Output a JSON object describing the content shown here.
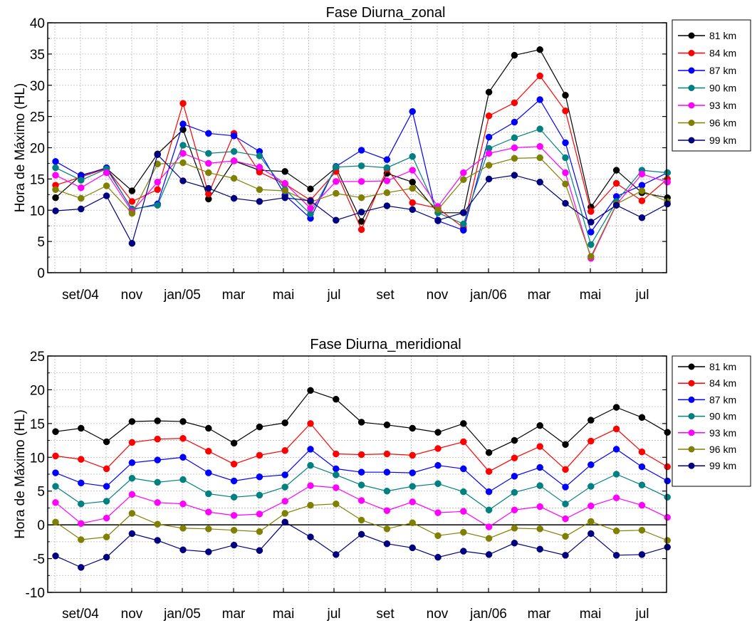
{
  "chart_data": [
    {
      "type": "line",
      "title": "Fase Diurna_zonal",
      "xlabel": "",
      "ylabel": "Hora de Máximo (HL)",
      "ylim": [
        0,
        40
      ],
      "yticks": [
        0,
        5,
        10,
        15,
        20,
        25,
        30,
        35,
        40
      ],
      "x_tick_labels": [
        "set/04",
        "nov",
        "jan/05",
        "mar",
        "mai",
        "jul",
        "set",
        "nov",
        "jan/06",
        "mar",
        "mai",
        "jul"
      ],
      "grid": true,
      "zero_line": false,
      "legend_position": "right",
      "series": [
        {
          "name": "81 km",
          "color": "#000000",
          "values": [
            12,
            15.6,
            16.7,
            13.1,
            19,
            22.9,
            11.8,
            17.9,
            16.4,
            16.2,
            13.4,
            16.8,
            8.2,
            15.9,
            14.5,
            9.6,
            9.6,
            28.9,
            34.8,
            35.7,
            28.4,
            10.5,
            16.4,
            12.8,
            12
          ]
        },
        {
          "name": "84 km",
          "color": "#ff0000",
          "values": [
            14,
            15.3,
            16.7,
            11.4,
            13.3,
            27.1,
            12.6,
            22.3,
            16.1,
            14.2,
            11.6,
            16.2,
            6.9,
            16.6,
            11.2,
            10.3,
            7.2,
            25.1,
            27.2,
            31.5,
            25.9,
            9.8,
            14.3,
            11.5,
            15
          ]
        },
        {
          "name": "87 km",
          "color": "#0000ff",
          "values": [
            17.8,
            15.5,
            16.8,
            10.1,
            11,
            23.8,
            22.3,
            21.9,
            19.4,
            12.4,
            8.7,
            17,
            19.6,
            18.1,
            25.8,
            8.3,
            6.8,
            21.7,
            24.1,
            27.7,
            20.8,
            6.5,
            12.2,
            14,
            16
          ]
        },
        {
          "name": "90 km",
          "color": "#008080",
          "values": [
            16.8,
            14.8,
            16.6,
            10.2,
            10.8,
            20.4,
            19.1,
            19.4,
            18.7,
            13.3,
            9.4,
            16.9,
            17.1,
            16.8,
            18.6,
            9.6,
            7.8,
            19.9,
            21.6,
            23,
            18.4,
            4.5,
            11.4,
            16.4,
            16
          ]
        },
        {
          "name": "93 km",
          "color": "#ff00ff",
          "values": [
            15.6,
            13.6,
            16,
            9.8,
            14.5,
            19.1,
            17.5,
            17.9,
            16.9,
            14.3,
            10.3,
            14.6,
            14.6,
            14.7,
            16.4,
            10.6,
            16,
            19.1,
            20,
            20.2,
            16,
            2.3,
            10.9,
            15.8,
            14.5
          ]
        },
        {
          "name": "96 km",
          "color": "#808000",
          "values": [
            13.3,
            11.9,
            13.9,
            9.5,
            17.4,
            17.6,
            16,
            15.1,
            13.3,
            13.1,
            11.3,
            12.7,
            12,
            12.8,
            13.5,
            10.1,
            14.9,
            17.2,
            18.3,
            18.4,
            14.2,
            2.6,
            11,
            13.1,
            11.4
          ]
        },
        {
          "name": "99 km",
          "color": "#000080",
          "values": [
            9.9,
            10.2,
            12.3,
            4.7,
            18.9,
            14.7,
            13.5,
            11.9,
            11.4,
            12,
            11.5,
            8.4,
            9.7,
            10.7,
            10.1,
            8.4,
            9.6,
            15,
            15.6,
            14.5,
            11.1,
            8.1,
            10.8,
            8.8,
            11
          ]
        }
      ]
    },
    {
      "type": "line",
      "title": "Fase Diurna_meridional",
      "xlabel": "",
      "ylabel": "Hora de Máximo (HL)",
      "ylim": [
        -10,
        25
      ],
      "yticks": [
        -10,
        -5,
        0,
        5,
        10,
        15,
        20,
        25
      ],
      "x_tick_labels": [
        "set/04",
        "nov",
        "jan/05",
        "mar",
        "mai",
        "jul",
        "set",
        "nov",
        "jan/06",
        "mar",
        "mai",
        "jul"
      ],
      "grid": true,
      "zero_line": true,
      "legend_position": "right",
      "series": [
        {
          "name": "81 km",
          "color": "#000000",
          "values": [
            13.8,
            14.3,
            12.3,
            15.3,
            15.4,
            15.3,
            14.3,
            12.1,
            14.5,
            15.1,
            19.9,
            18.6,
            15.2,
            14.8,
            14.3,
            13.7,
            15,
            10.7,
            12.5,
            14.7,
            11.9,
            15.5,
            17.4,
            15.9,
            13.7
          ]
        },
        {
          "name": "84 km",
          "color": "#ff0000",
          "values": [
            10.2,
            9.7,
            8.3,
            12.2,
            12.7,
            12.8,
            10.9,
            9,
            10.3,
            11,
            15,
            10.5,
            10.4,
            10.5,
            10.3,
            11.3,
            12.3,
            7.9,
            9.9,
            11.6,
            8.2,
            12.4,
            14.2,
            10.8,
            8.6
          ]
        },
        {
          "name": "87 km",
          "color": "#0000ff",
          "values": [
            7.7,
            6.2,
            5.7,
            9.2,
            9.6,
            10,
            7.7,
            6.5,
            7.1,
            7.4,
            11.2,
            8.3,
            7.8,
            7.8,
            7.7,
            8.8,
            8.3,
            4.9,
            7.2,
            8.5,
            5.6,
            8.9,
            11.2,
            8.6,
            6.5
          ]
        },
        {
          "name": "90 km",
          "color": "#008080",
          "values": [
            5.7,
            3.1,
            3.5,
            6.9,
            6.3,
            6.7,
            4.6,
            4.1,
            4.4,
            5.6,
            8.8,
            7.4,
            5.9,
            5,
            5.7,
            6.1,
            4.9,
            2.2,
            4.8,
            5.8,
            3.1,
            5.7,
            7.5,
            5.9,
            4.1
          ]
        },
        {
          "name": "93 km",
          "color": "#ff00ff",
          "values": [
            3.3,
            0.2,
            1,
            4.5,
            3.3,
            3.1,
            1.9,
            1.4,
            1.6,
            3.5,
            5.8,
            5.5,
            3.6,
            2.1,
            3.4,
            1.8,
            2,
            -0.3,
            2.2,
            2.7,
            0.9,
            2.8,
            4,
            2.9,
            1.1
          ]
        },
        {
          "name": "96 km",
          "color": "#808000",
          "values": [
            0.4,
            -2.2,
            -1.8,
            1.7,
            0.1,
            -0.5,
            -0.6,
            -0.8,
            -1,
            1.7,
            2.9,
            3.1,
            0.7,
            -0.6,
            0.3,
            -1.6,
            -1.1,
            -2,
            -0.5,
            -0.6,
            -1.7,
            0.5,
            -0.9,
            -0.8,
            -2.3
          ]
        },
        {
          "name": "99 km",
          "color": "#000080",
          "values": [
            -4.6,
            -6.3,
            -4.8,
            -1.3,
            -2.3,
            -3.7,
            -4,
            -3,
            -3.8,
            0.4,
            -1.8,
            -4.4,
            -1.4,
            -2.8,
            -3.4,
            -4.8,
            -3.9,
            -4.4,
            -2.7,
            -3.6,
            -4.5,
            -1.3,
            -4.5,
            -4.4,
            -3.3
          ]
        }
      ]
    }
  ]
}
